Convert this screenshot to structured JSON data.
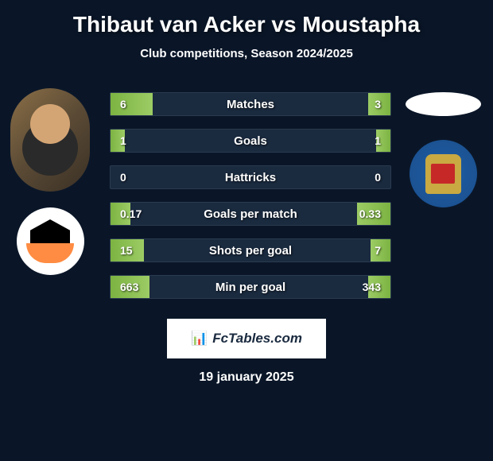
{
  "title": "Thibaut van Acker vs Moustapha",
  "subtitle": "Club competitions, Season 2024/2025",
  "date": "19 january 2025",
  "branding": "FcTables.com",
  "branding_icon": "📊",
  "colors": {
    "background": "#0a1628",
    "bar_bg": "#1a2a3f",
    "bar_fill": "#9ccc65",
    "text": "#ffffff"
  },
  "stats": [
    {
      "label": "Matches",
      "left_val": "6",
      "right_val": "3",
      "left_pct": 15,
      "right_pct": 8
    },
    {
      "label": "Goals",
      "left_val": "1",
      "right_val": "1",
      "left_pct": 5,
      "right_pct": 5
    },
    {
      "label": "Hattricks",
      "left_val": "0",
      "right_val": "0",
      "left_pct": 0,
      "right_pct": 0
    },
    {
      "label": "Goals per match",
      "left_val": "0.17",
      "right_val": "0.33",
      "left_pct": 7,
      "right_pct": 12
    },
    {
      "label": "Shots per goal",
      "left_val": "15",
      "right_val": "7",
      "left_pct": 12,
      "right_pct": 7
    },
    {
      "label": "Min per goal",
      "left_val": "663",
      "right_val": "343",
      "left_pct": 14,
      "right_pct": 8
    }
  ]
}
